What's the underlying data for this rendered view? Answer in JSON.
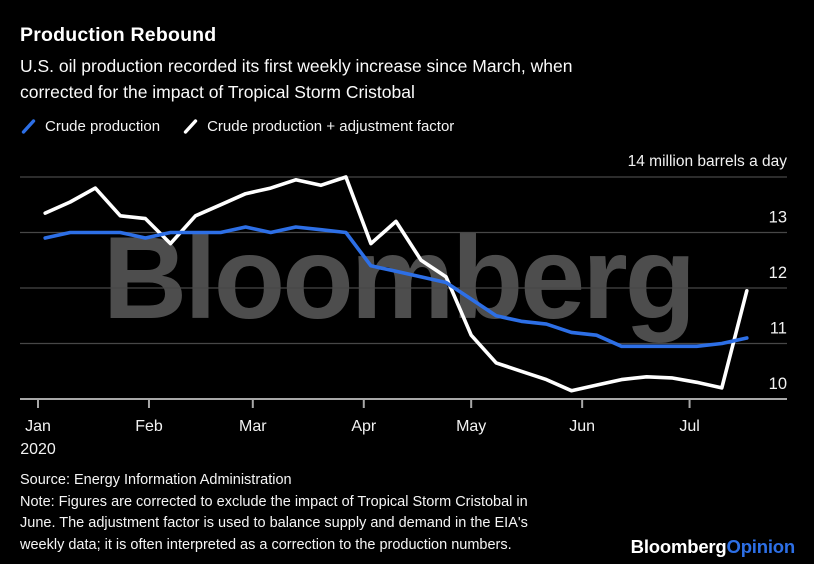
{
  "header": {
    "title": "Production Rebound",
    "subtitle_lines": [
      "U.S. oil production recorded its first weekly increase since March, when",
      "corrected for the impact of Tropical Storm Cristobal"
    ]
  },
  "legend": {
    "items": [
      {
        "label": "Crude production",
        "color": "#2d6fe6"
      },
      {
        "label": "Crude production + adjustment factor",
        "color": "#ffffff"
      }
    ]
  },
  "chart_data": {
    "type": "line",
    "title": "Production Rebound",
    "unit_label": "14 million barrels a day",
    "watermark": "Bloomberg",
    "ylim": [
      10,
      14
    ],
    "y_gridlines": [
      {
        "value": 14,
        "label": ""
      },
      {
        "value": 13,
        "label": "13"
      },
      {
        "value": 12,
        "label": "12"
      },
      {
        "value": 11,
        "label": "11"
      },
      {
        "value": 10,
        "label": "10"
      }
    ],
    "x_tick_labels": [
      "Jan",
      "Feb",
      "Mar",
      "Apr",
      "May",
      "Jun",
      "Jul"
    ],
    "x_year_label": "2020",
    "dates": [
      "2020-01-03",
      "2020-01-10",
      "2020-01-17",
      "2020-01-24",
      "2020-01-31",
      "2020-02-07",
      "2020-02-14",
      "2020-02-21",
      "2020-02-28",
      "2020-03-06",
      "2020-03-13",
      "2020-03-20",
      "2020-03-27",
      "2020-04-03",
      "2020-04-10",
      "2020-04-17",
      "2020-04-24",
      "2020-05-01",
      "2020-05-08",
      "2020-05-15",
      "2020-05-22",
      "2020-05-29",
      "2020-06-05",
      "2020-06-12",
      "2020-06-19",
      "2020-06-26",
      "2020-07-03",
      "2020-07-10",
      "2020-07-17"
    ],
    "series": [
      {
        "name": "Crude production + adjustment factor",
        "color": "#ffffff",
        "values": [
          13.35,
          13.55,
          13.8,
          13.3,
          13.25,
          12.8,
          13.3,
          13.5,
          13.7,
          13.8,
          13.95,
          13.85,
          14.0,
          12.8,
          13.2,
          12.5,
          12.2,
          11.15,
          10.65,
          10.5,
          10.35,
          10.15,
          10.25,
          10.35,
          10.4,
          10.38,
          10.3,
          10.2,
          11.95
        ]
      },
      {
        "name": "Crude production",
        "color": "#2d6fe6",
        "values": [
          12.9,
          13.0,
          13.0,
          13.0,
          12.9,
          13.0,
          13.0,
          13.0,
          13.1,
          13.0,
          13.1,
          13.05,
          13.0,
          12.4,
          12.3,
          12.2,
          12.1,
          11.8,
          11.5,
          11.4,
          11.35,
          11.2,
          11.15,
          10.95,
          10.95,
          10.95,
          10.95,
          11.0,
          11.1
        ]
      }
    ]
  },
  "footer": {
    "source": "Source: Energy Information Administration",
    "note_lines": [
      "Note: Figures are corrected to exclude the impact of Tropical Storm Cristobal in",
      "June. The adjustment factor is used to balance supply and demand in the EIA's",
      "weekly data; it is often interpreted as a correction to the production numbers."
    ],
    "logo": {
      "brand": "Bloomberg",
      "suffix": "Opinion",
      "suffix_color": "#2d6fe6"
    }
  }
}
